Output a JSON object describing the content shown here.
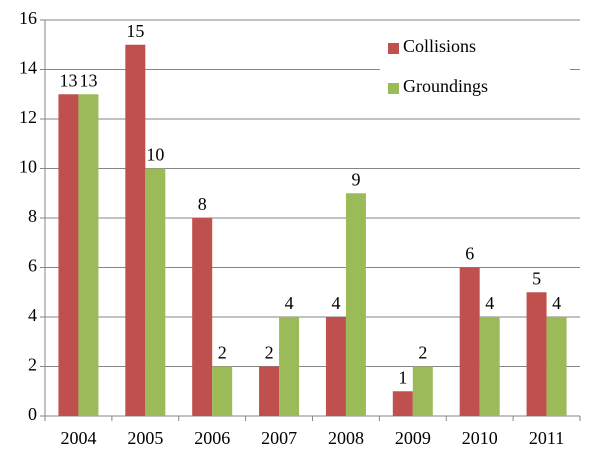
{
  "chart_data": {
    "type": "bar",
    "categories": [
      "2004",
      "2005",
      "2006",
      "2007",
      "2008",
      "2009",
      "2010",
      "2011"
    ],
    "series": [
      {
        "name": "Collisions",
        "color": "#c0504d",
        "values": [
          13,
          15,
          8,
          2,
          4,
          1,
          6,
          5
        ]
      },
      {
        "name": "Groundings",
        "color": "#9bbb59",
        "values": [
          13,
          10,
          2,
          4,
          9,
          2,
          4,
          4
        ]
      }
    ],
    "ylim": [
      0,
      16
    ],
    "yticks": [
      0,
      2,
      4,
      6,
      8,
      10,
      12,
      14,
      16
    ],
    "grid": true,
    "legend": "upper right"
  }
}
